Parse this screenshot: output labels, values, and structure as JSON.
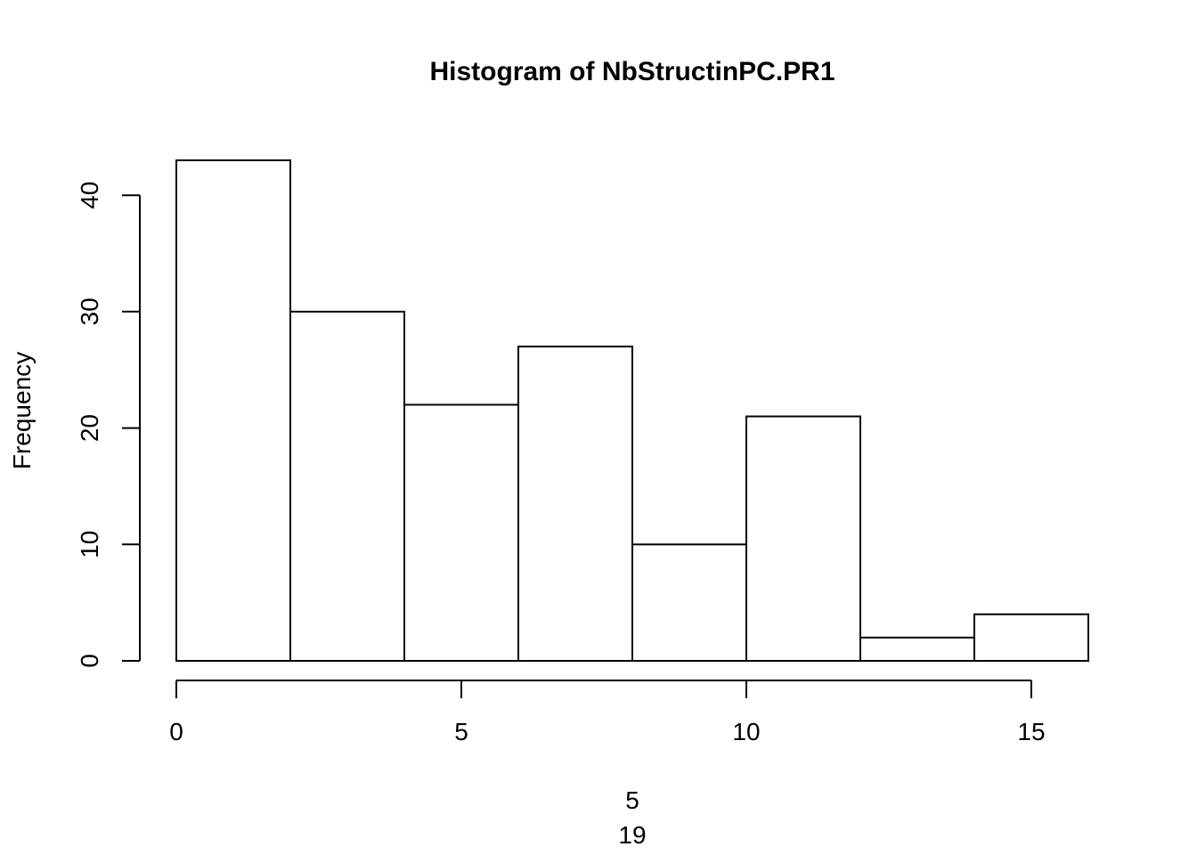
{
  "chart_data": {
    "type": "bar",
    "title": "Histogram of NbStructinPC.PR1",
    "ylabel": "Frequency",
    "xlabel_lines": [
      "5",
      "19"
    ],
    "bins": [
      {
        "start": 0,
        "end": 2,
        "count": 43
      },
      {
        "start": 2,
        "end": 4,
        "count": 30
      },
      {
        "start": 4,
        "end": 6,
        "count": 22
      },
      {
        "start": 6,
        "end": 8,
        "count": 27
      },
      {
        "start": 8,
        "end": 10,
        "count": 10
      },
      {
        "start": 10,
        "end": 12,
        "count": 21
      },
      {
        "start": 12,
        "end": 14,
        "count": 2
      },
      {
        "start": 14,
        "end": 16,
        "count": 4
      }
    ],
    "x_ticks": [
      0,
      5,
      10,
      15
    ],
    "x_tick_labels": [
      "0",
      "5",
      "10",
      "15"
    ],
    "y_ticks": [
      0,
      10,
      20,
      30,
      40
    ],
    "y_tick_labels": [
      "0",
      "10",
      "20",
      "30",
      "40"
    ],
    "xlim": [
      0,
      16
    ],
    "ylim": [
      0,
      43
    ],
    "grid": false,
    "legend": false
  }
}
